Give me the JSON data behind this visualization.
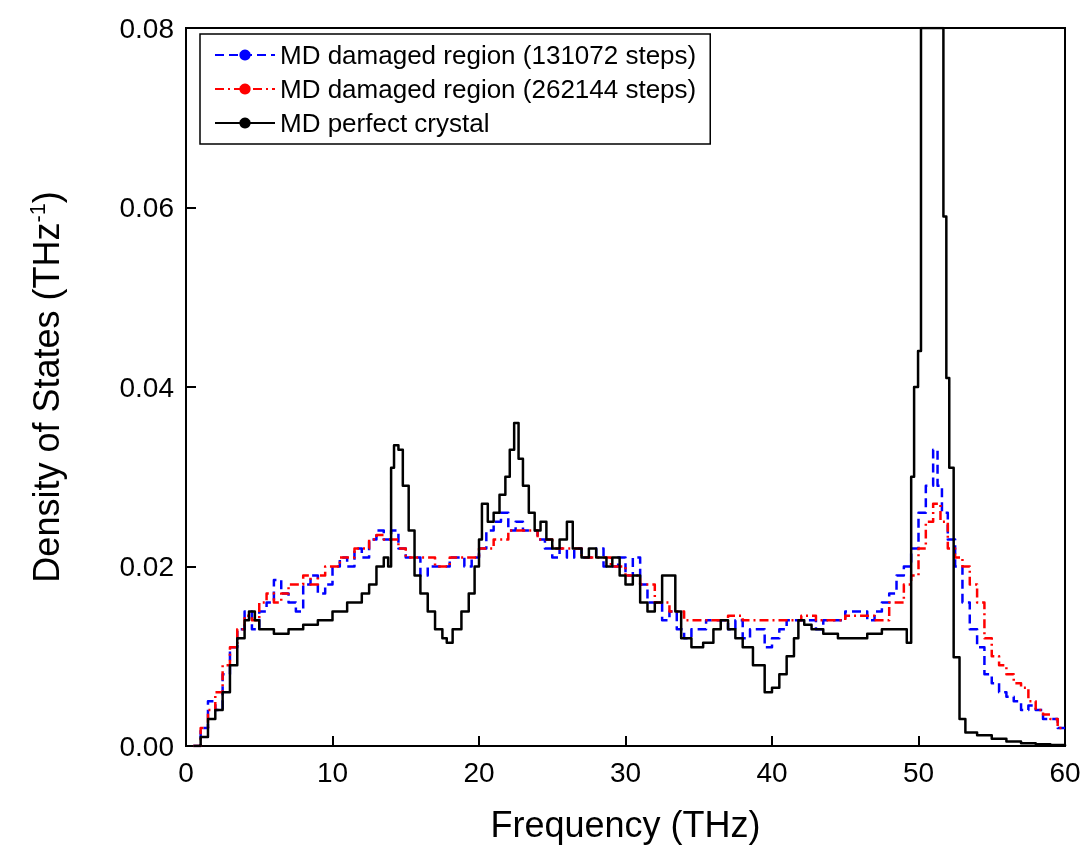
{
  "chart_data": {
    "type": "step",
    "xlabel": "Frequency (THz)",
    "ylabel": "Density of States (THz$^{-1}$)",
    "xlim": [
      0,
      60
    ],
    "xticks": [
      0,
      10,
      20,
      30,
      40,
      50,
      60
    ],
    "ylim": [
      0,
      0.08
    ],
    "yticks": [
      {
        "value": 0,
        "label": "0.00"
      },
      {
        "value": 0.02,
        "label": "0.02"
      },
      {
        "value": 0.04,
        "label": "0.04"
      },
      {
        "value": 0.06,
        "label": "0.06"
      },
      {
        "value": 0.08,
        "label": "0.08"
      }
    ],
    "grid": false,
    "legend": "top left",
    "series": [
      {
        "name": "MD damaged region (131072 steps)",
        "color": "#0000ff",
        "line_style": "dashed",
        "x": [
          0.5,
          1,
          1.5,
          2,
          2.5,
          3,
          3.5,
          4,
          4.5,
          5,
          5.5,
          6,
          6.5,
          7,
          7.5,
          8,
          8.5,
          9,
          9.5,
          10,
          10.5,
          11,
          11.5,
          12,
          12.5,
          13,
          13.5,
          14,
          14.5,
          15,
          15.5,
          16,
          16.5,
          17,
          17.5,
          18,
          18.5,
          19,
          19.5,
          20,
          20.5,
          21,
          21.5,
          22,
          22.5,
          23,
          23.5,
          24,
          24.5,
          25,
          25.5,
          26,
          26.5,
          27,
          27.5,
          28,
          28.5,
          29,
          29.5,
          30,
          30.5,
          31,
          31.5,
          32,
          32.5,
          33,
          33.5,
          34,
          34.5,
          35,
          35.5,
          36,
          36.5,
          37,
          37.5,
          38,
          38.5,
          39,
          39.5,
          40,
          40.5,
          41,
          41.5,
          42,
          42.5,
          43,
          43.5,
          44,
          45,
          46,
          46.5,
          47,
          47.5,
          48,
          48.5,
          49,
          49.5,
          50,
          50.5,
          51,
          51.3,
          51.6,
          52,
          52.5,
          53,
          53.5,
          54,
          54.5,
          55,
          55.5,
          56,
          56.5,
          57,
          57.5,
          58,
          58.5,
          59,
          59.5,
          60
        ],
        "values": [
          0,
          0.002,
          0.005,
          0.004,
          0.008,
          0.011,
          0.013,
          0.015,
          0.013,
          0.015,
          0.016,
          0.0185,
          0.017,
          0.016,
          0.015,
          0.018,
          0.019,
          0.017,
          0.018,
          0.02,
          0.021,
          0.02,
          0.022,
          0.021,
          0.023,
          0.024,
          0.023,
          0.024,
          0.022,
          0.021,
          0.021,
          0.019,
          0.02,
          0.02,
          0.02,
          0.021,
          0.021,
          0.02,
          0.021,
          0.022,
          0.024,
          0.025,
          0.026,
          0.024,
          0.025,
          0.024,
          0.024,
          0.023,
          0.022,
          0.021,
          0.022,
          0.021,
          0.022,
          0.021,
          0.021,
          0.022,
          0.02,
          0.02,
          0.021,
          0.019,
          0.021,
          0.018,
          0.016,
          0.016,
          0.014,
          0.015,
          0.013,
          0.012,
          0.013,
          0.013,
          0.014,
          0.014,
          0.014,
          0.013,
          0.014,
          0.012,
          0.013,
          0.013,
          0.011,
          0.012,
          0.013,
          0.014,
          0.014,
          0.014,
          0.014,
          0.013,
          0.014,
          0.014,
          0.015,
          0.015,
          0.014,
          0.015,
          0.016,
          0.017,
          0.019,
          0.02,
          0.022,
          0.026,
          0.029,
          0.033,
          0.029,
          0.026,
          0.023,
          0.02,
          0.016,
          0.013,
          0.011,
          0.008,
          0.007,
          0.006,
          0.0055,
          0.005,
          0.004,
          0.0045,
          0.004,
          0.003,
          0.003,
          0.002,
          0.002
        ]
      },
      {
        "name": "MD damaged region (262144 steps)",
        "color": "#ff0000",
        "line_style": "dashdot",
        "x": [
          0.5,
          1,
          1.5,
          2,
          2.5,
          3,
          3.5,
          4,
          4.5,
          5,
          5.5,
          6,
          6.5,
          7,
          7.5,
          8,
          8.5,
          9,
          9.5,
          10,
          10.5,
          11,
          11.5,
          12,
          12.5,
          13,
          13.5,
          14,
          14.5,
          15,
          16,
          17,
          18,
          19,
          20,
          21,
          22,
          23,
          24,
          25,
          26,
          27,
          28,
          29,
          30,
          31,
          32,
          33,
          34,
          35,
          36,
          37,
          38,
          39,
          40,
          41,
          42,
          43,
          44,
          45,
          46,
          47,
          48,
          49,
          49.5,
          50,
          50.5,
          51,
          51.5,
          52,
          52.5,
          53,
          53.5,
          54,
          54.5,
          55,
          55.5,
          56,
          56.5,
          57,
          57.5,
          58,
          58.5,
          59,
          59.5,
          60
        ],
        "values": [
          0,
          0.002,
          0.004,
          0.006,
          0.009,
          0.011,
          0.013,
          0.0145,
          0.014,
          0.016,
          0.017,
          0.016,
          0.017,
          0.018,
          0.018,
          0.019,
          0.018,
          0.019,
          0.02,
          0.02,
          0.021,
          0.021,
          0.022,
          0.022,
          0.023,
          0.0235,
          0.023,
          0.023,
          0.022,
          0.021,
          0.021,
          0.02,
          0.021,
          0.021,
          0.022,
          0.023,
          0.024,
          0.024,
          0.023,
          0.022,
          0.022,
          0.021,
          0.021,
          0.02,
          0.019,
          0.018,
          0.016,
          0.015,
          0.014,
          0.014,
          0.014,
          0.0145,
          0.014,
          0.014,
          0.014,
          0.014,
          0.0145,
          0.014,
          0.014,
          0.0145,
          0.0145,
          0.014,
          0.016,
          0.018,
          0.019,
          0.022,
          0.025,
          0.027,
          0.025,
          0.022,
          0.021,
          0.02,
          0.018,
          0.016,
          0.012,
          0.01,
          0.009,
          0.008,
          0.007,
          0.0065,
          0.005,
          0.004,
          0.0035,
          0.003,
          0.002,
          0.002
        ]
      },
      {
        "name": "MD perfect crystal",
        "color": "#000000",
        "line_style": "solid",
        "x": [
          0.5,
          1,
          1.5,
          2,
          2.5,
          3,
          3.5,
          4,
          4.3,
          4.7,
          5,
          6,
          7,
          8,
          9,
          10,
          11,
          12,
          12.5,
          13,
          13.5,
          13.8,
          14,
          14.2,
          14.5,
          14.8,
          15.2,
          15.6,
          16,
          16.5,
          17,
          17.5,
          17.8,
          18.2,
          18.8,
          19.3,
          19.7,
          20,
          20.2,
          20.6,
          21,
          21.4,
          21.8,
          22.1,
          22.4,
          22.7,
          23,
          23.4,
          23.8,
          24.2,
          24.6,
          25,
          25.5,
          26,
          26.4,
          27,
          27.5,
          28,
          28.7,
          29.1,
          29.6,
          30,
          30.5,
          31,
          31.5,
          32,
          32.5,
          33,
          33.4,
          33.8,
          34.5,
          35.3,
          36,
          36.5,
          37,
          37.5,
          38,
          38.7,
          39.5,
          40,
          40.5,
          41,
          41.5,
          41.8,
          42.2,
          42.7,
          43.5,
          44.5,
          45.5,
          46.5,
          47.5,
          48.5,
          49.2,
          49.5,
          49.7,
          49.97,
          50.17,
          51.7,
          51.9,
          52.1,
          52.4,
          52.8,
          53.2,
          54,
          55,
          56,
          57,
          58,
          59,
          60
        ],
        "values": [
          0,
          0.001,
          0.003,
          0.004,
          0.006,
          0.009,
          0.012,
          0.014,
          0.015,
          0.014,
          0.013,
          0.0125,
          0.013,
          0.0135,
          0.014,
          0.015,
          0.016,
          0.017,
          0.018,
          0.02,
          0.021,
          0.02,
          0.031,
          0.0335,
          0.033,
          0.029,
          0.024,
          0.019,
          0.017,
          0.015,
          0.013,
          0.012,
          0.0115,
          0.013,
          0.015,
          0.017,
          0.02,
          0.023,
          0.027,
          0.025,
          0.026,
          0.028,
          0.03,
          0.033,
          0.036,
          0.032,
          0.029,
          0.026,
          0.024,
          0.025,
          0.023,
          0.022,
          0.023,
          0.025,
          0.022,
          0.021,
          0.022,
          0.021,
          0.02,
          0.021,
          0.019,
          0.018,
          0.019,
          0.016,
          0.015,
          0.016,
          0.019,
          0.019,
          0.015,
          0.012,
          0.011,
          0.0115,
          0.013,
          0.014,
          0.013,
          0.012,
          0.011,
          0.009,
          0.006,
          0.0065,
          0.008,
          0.01,
          0.012,
          0.014,
          0.0135,
          0.013,
          0.0125,
          0.012,
          0.012,
          0.0125,
          0.013,
          0.013,
          0.0115,
          0.03,
          0.04,
          0.044,
          0.08,
          0.059,
          0.041,
          0.031,
          0.0099,
          0.003,
          0.0015,
          0.0012,
          0.0008,
          0.0005,
          0.0003,
          0.0002,
          0.0001,
          0
        ]
      }
    ]
  }
}
